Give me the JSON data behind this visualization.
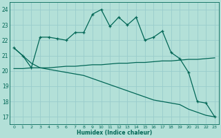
{
  "xlabel": "Humidex (Indice chaleur)",
  "background_color": "#b3e0d8",
  "grid_color": "#99cccc",
  "line_color": "#006655",
  "ylim": [
    16.5,
    24.5
  ],
  "xlim": [
    -0.5,
    23.5
  ],
  "yticks": [
    17,
    18,
    19,
    20,
    21,
    22,
    23,
    24
  ],
  "xticks": [
    0,
    1,
    2,
    3,
    4,
    5,
    6,
    7,
    8,
    9,
    10,
    11,
    12,
    13,
    14,
    15,
    16,
    17,
    18,
    19,
    20,
    21,
    22,
    23
  ],
  "wavy_line": {
    "x": [
      0,
      1,
      2,
      3,
      4,
      5,
      6,
      7,
      8,
      9,
      10,
      11,
      12,
      13,
      14,
      15,
      16,
      17,
      18,
      19,
      20,
      21,
      22,
      23
    ],
    "y": [
      21.5,
      21.0,
      20.2,
      22.2,
      22.2,
      22.1,
      22.0,
      22.5,
      22.5,
      23.7,
      24.0,
      22.9,
      23.5,
      23.0,
      23.5,
      22.0,
      22.2,
      22.6,
      21.2,
      20.8,
      19.9,
      18.0,
      17.9,
      17.0
    ]
  },
  "diag_line": {
    "x": [
      0,
      1,
      2,
      3,
      4,
      5,
      6,
      7,
      8,
      9,
      10,
      11,
      12,
      13,
      14,
      15,
      16,
      17,
      18,
      19,
      20,
      21,
      22,
      23
    ],
    "y": [
      21.5,
      21.0,
      20.5,
      20.2,
      20.1,
      20.0,
      19.9,
      19.8,
      19.7,
      19.5,
      19.3,
      19.1,
      18.9,
      18.7,
      18.5,
      18.3,
      18.1,
      18.0,
      17.9,
      17.8,
      17.5,
      17.3,
      17.1,
      17.0
    ]
  },
  "flat_line": {
    "x": [
      0,
      1,
      2,
      3,
      4,
      5,
      6,
      7,
      8,
      9,
      10,
      11,
      12,
      13,
      14,
      15,
      16,
      17,
      18,
      19,
      20,
      21,
      22,
      23
    ],
    "y": [
      20.15,
      20.15,
      20.2,
      20.2,
      20.2,
      20.25,
      20.3,
      20.3,
      20.35,
      20.4,
      20.4,
      20.45,
      20.5,
      20.5,
      20.55,
      20.55,
      20.6,
      20.65,
      20.65,
      20.7,
      20.75,
      20.75,
      20.8,
      20.85
    ]
  }
}
